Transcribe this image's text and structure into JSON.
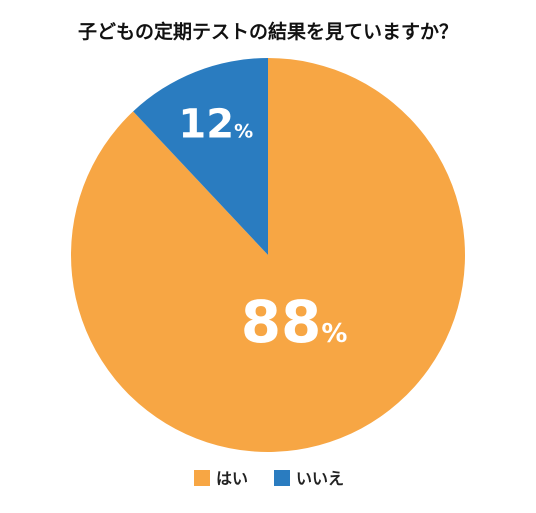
{
  "chart_data": {
    "type": "pie",
    "title": "子どもの定期テストの結果を見ていますか？",
    "categories": [
      "はい",
      "いいえ"
    ],
    "values": [
      88,
      12
    ],
    "unit": "%",
    "colors": [
      "#f7a644",
      "#2a7cc0"
    ],
    "legend_position": "bottom"
  }
}
